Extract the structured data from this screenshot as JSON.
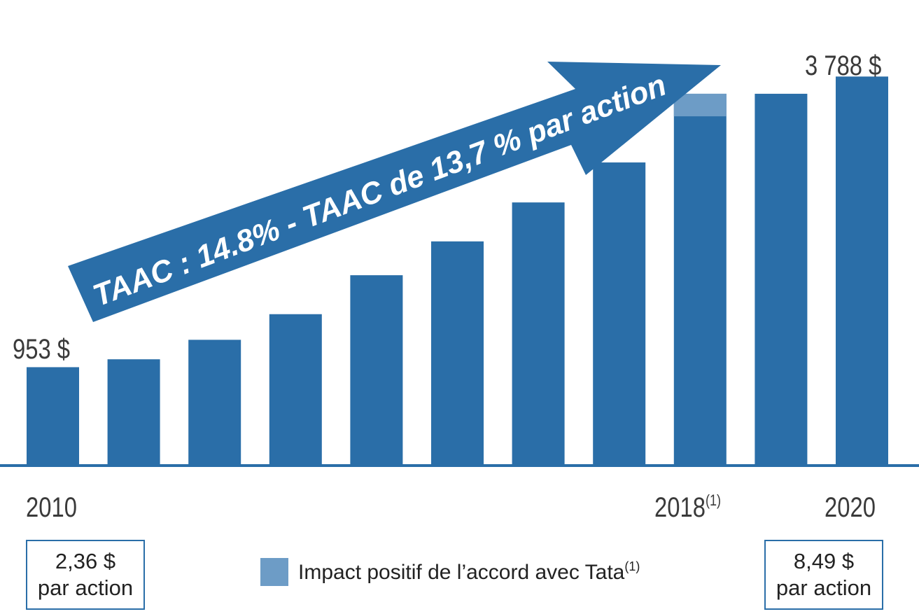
{
  "chart_data": {
    "type": "bar",
    "title": "",
    "categories": [
      "2010",
      "",
      "",
      "",
      "",
      "",
      "",
      "",
      "2018",
      "",
      "2020"
    ],
    "series": [
      {
        "values": [
          953,
          1030,
          1220,
          1470,
          1850,
          2180,
          2560,
          2950,
          3620,
          3620,
          3788
        ]
      },
      {
        "name": "Impact positif de l’accord avec Tata",
        "values": [
          0,
          0,
          0,
          0,
          0,
          0,
          0,
          0,
          220,
          0,
          0
        ]
      }
    ],
    "value_labels": {
      "first": "953 $",
      "last": "3 788 $"
    },
    "year_labels": {
      "first": "2010",
      "marked": "2018",
      "marked_footnote": "(1)",
      "last": "2020"
    },
    "arrow_text": "TAAC : 14.8% - TAAC de 13,7 % par action",
    "ylim": [
      0,
      4200
    ],
    "colors": {
      "bar": "#2a6ea8",
      "tata_impact": "#6d9cc6",
      "arrow": "#2a6ea8",
      "axis": "#2a6ea8"
    },
    "legend": {
      "label": "Impact positif de l’accord avec Tata",
      "footnote": "(1)",
      "placement": "bottom-center"
    },
    "per_share": {
      "start": {
        "value": "2,36 $",
        "unit": "par action"
      },
      "end": {
        "value": "8,49 $",
        "unit": "par action"
      }
    }
  }
}
